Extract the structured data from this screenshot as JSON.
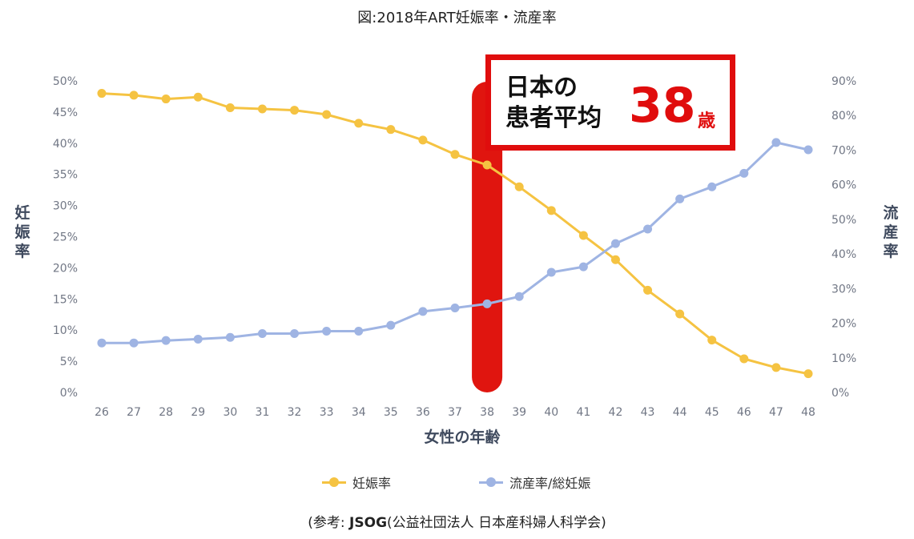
{
  "title": "図:2018年ART妊娠率・流産率",
  "chart_data": {
    "type": "line",
    "x": [
      26,
      27,
      28,
      29,
      30,
      31,
      32,
      33,
      34,
      35,
      36,
      37,
      38,
      39,
      40,
      41,
      42,
      43,
      44,
      45,
      46,
      47,
      48
    ],
    "xlabel": "女性の年齢",
    "series": [
      {
        "name": "妊娠率",
        "axis": "left",
        "color": "#f5c342",
        "values": [
          48.0,
          47.7,
          47.1,
          47.4,
          45.7,
          45.5,
          45.3,
          44.6,
          43.2,
          42.2,
          40.5,
          38.2,
          36.5,
          33.0,
          29.2,
          25.2,
          21.3,
          16.4,
          12.6,
          8.4,
          5.4,
          4.0,
          3.0
        ]
      },
      {
        "name": "流産率/総妊娠",
        "axis": "right",
        "color": "#9fb4e3",
        "values": [
          14.3,
          14.3,
          15.0,
          15.4,
          15.9,
          17.0,
          17.0,
          17.7,
          17.7,
          19.4,
          23.4,
          24.4,
          25.6,
          27.7,
          34.7,
          36.3,
          43.0,
          47.2,
          55.9,
          59.4,
          63.3,
          72.2,
          70.1
        ]
      }
    ],
    "y_left": {
      "label": "妊娠率",
      "ylim": [
        0,
        50
      ],
      "ticks": [
        "0%",
        "5%",
        "10%",
        "15%",
        "20%",
        "25%",
        "30%",
        "35%",
        "40%",
        "45%",
        "50%"
      ]
    },
    "y_right": {
      "label": "流産率",
      "ylim": [
        0,
        90
      ],
      "ticks": [
        "0%",
        "10%",
        "20%",
        "30%",
        "40%",
        "50%",
        "60%",
        "70%",
        "80%",
        "90%"
      ]
    },
    "highlight": {
      "x": 38,
      "color": "#e0150f"
    },
    "grid": false,
    "legend_position": "bottom"
  },
  "callout": {
    "label": "日本の\n患者平均",
    "value": "38",
    "unit": "歳"
  },
  "source": {
    "prefix": "(参考: ",
    "bold": "JSOG",
    "rest": "(公益社団法人 日本産科婦人科学会)"
  }
}
